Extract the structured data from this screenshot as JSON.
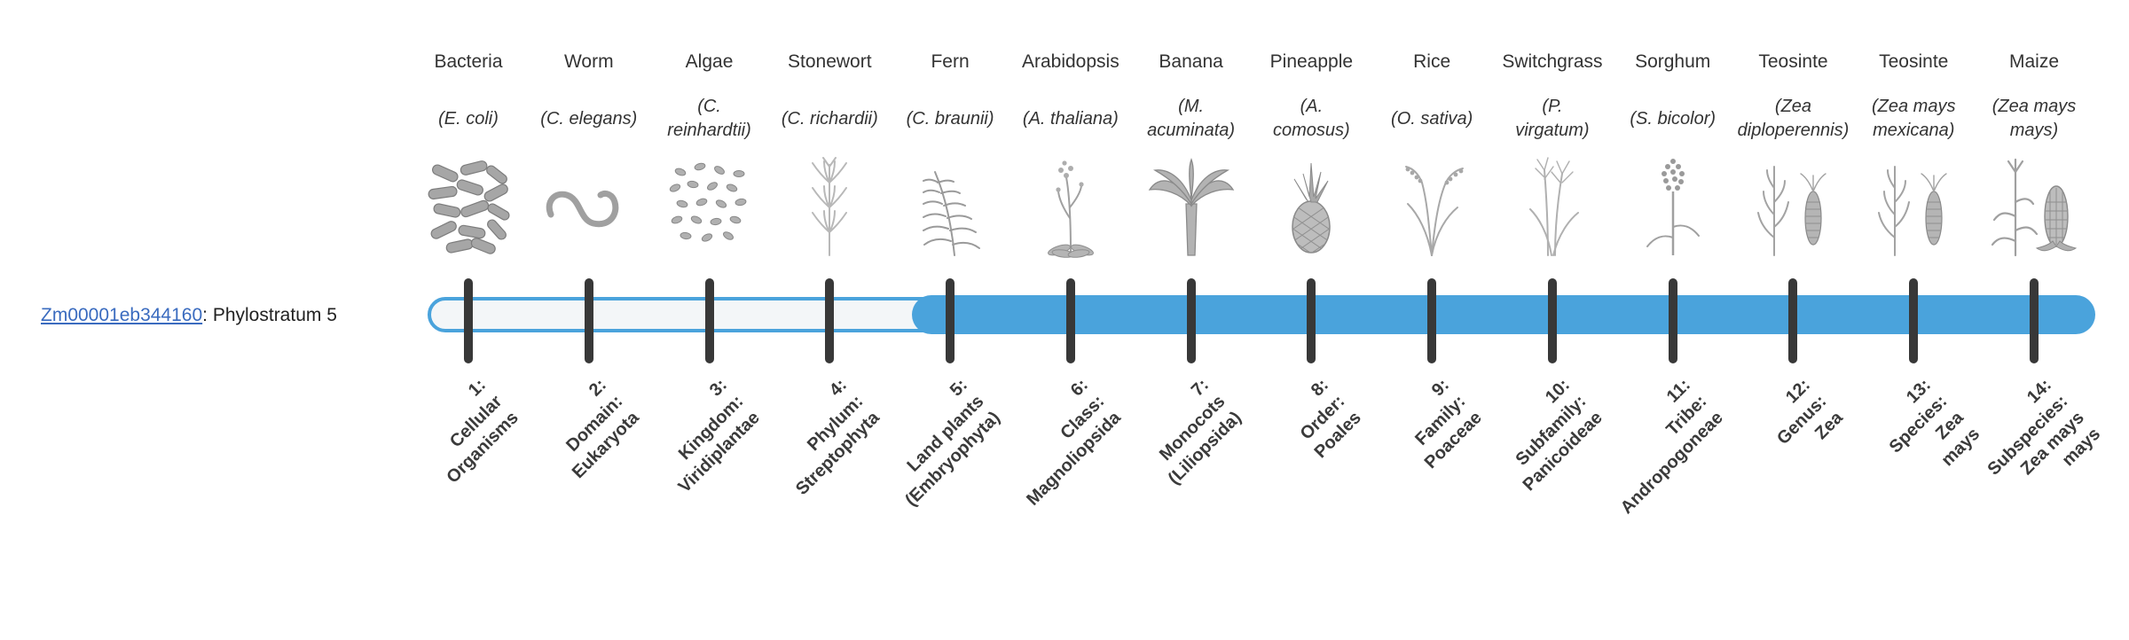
{
  "diagram": {
    "bar_fill_color": "#4aa3dc",
    "bar_empty_color": "#f3f6f8",
    "tick_color": "#383838",
    "link_color": "#3a6bbf",
    "filled_from_stratum": 5,
    "strata_count": 14
  },
  "gene": {
    "id": "Zm00001eb344160",
    "suffix": ": Phylostratum 5"
  },
  "organisms": [
    {
      "common_name": "Bacteria",
      "sci_lines": [
        "(E. coli)"
      ],
      "icon": "bacteria-icon",
      "stratum": 1,
      "stratum_lines": [
        "1:",
        "Cellular",
        "Organisms"
      ]
    },
    {
      "common_name": "Worm",
      "sci_lines": [
        "(C. elegans)"
      ],
      "icon": "worm-icon",
      "stratum": 2,
      "stratum_lines": [
        "2:",
        "Domain:",
        "Eukaryota"
      ]
    },
    {
      "common_name": "Algae",
      "sci_lines": [
        "(C.",
        "reinhardtii)"
      ],
      "icon": "algae-icon",
      "stratum": 3,
      "stratum_lines": [
        "3:",
        "Kingdom:",
        "Viridiplantae"
      ]
    },
    {
      "common_name": "Stonewort",
      "sci_lines": [
        "(C. richardii)"
      ],
      "icon": "stonewort-icon",
      "stratum": 4,
      "stratum_lines": [
        "4:",
        "Phylum:",
        "Streptophyta"
      ]
    },
    {
      "common_name": "Fern",
      "sci_lines": [
        "(C. braunii)"
      ],
      "icon": "fern-icon",
      "stratum": 5,
      "stratum_lines": [
        "5:",
        "Land plants",
        "(Embryophyta)"
      ]
    },
    {
      "common_name": "Arabidopsis",
      "sci_lines": [
        "(A. thaliana)"
      ],
      "icon": "arabidopsis-icon",
      "stratum": 6,
      "stratum_lines": [
        "6:",
        "Class:",
        "Magnoliopsida"
      ]
    },
    {
      "common_name": "Banana",
      "sci_lines": [
        "(M.",
        "acuminata)"
      ],
      "icon": "banana-icon",
      "stratum": 7,
      "stratum_lines": [
        "7:",
        "Monocots",
        "(Liliopsida)"
      ]
    },
    {
      "common_name": "Pineapple",
      "sci_lines": [
        "(A.",
        "comosus)"
      ],
      "icon": "pineapple-icon",
      "stratum": 8,
      "stratum_lines": [
        "8:",
        "Order:",
        "Poales"
      ]
    },
    {
      "common_name": "Rice",
      "sci_lines": [
        "(O. sativa)"
      ],
      "icon": "rice-icon",
      "stratum": 9,
      "stratum_lines": [
        "9:",
        "Family:",
        "Poaceae"
      ]
    },
    {
      "common_name": "Switchgrass",
      "sci_lines": [
        "(P.",
        "virgatum)"
      ],
      "icon": "switchgrass-icon",
      "stratum": 10,
      "stratum_lines": [
        "10:",
        "Subfamily:",
        "Panicoideae"
      ]
    },
    {
      "common_name": "Sorghum",
      "sci_lines": [
        "(S. bicolor)"
      ],
      "icon": "sorghum-icon",
      "stratum": 11,
      "stratum_lines": [
        "11:",
        "Tribe:",
        "Andropogoneae"
      ]
    },
    {
      "common_name": "Teosinte",
      "sci_lines": [
        "(Zea",
        "diploperennis)"
      ],
      "icon": "teosinte-icon",
      "stratum": 12,
      "stratum_lines": [
        "12:",
        "Genus:",
        "Zea"
      ]
    },
    {
      "common_name": "Teosinte",
      "sci_lines": [
        "(Zea mays",
        "mexicana)"
      ],
      "icon": "teosinte-icon",
      "stratum": 13,
      "stratum_lines": [
        "13:",
        "Species:",
        "Zea",
        "mays"
      ]
    },
    {
      "common_name": "Maize",
      "sci_lines": [
        "(Zea mays",
        "mays)"
      ],
      "icon": "maize-icon",
      "stratum": 14,
      "stratum_lines": [
        "14:",
        "Subspecies:",
        "Zea mays",
        "mays"
      ]
    }
  ]
}
